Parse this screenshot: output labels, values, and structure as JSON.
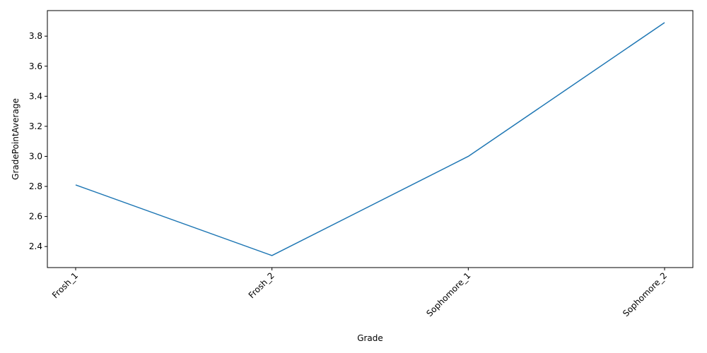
{
  "chart_data": {
    "type": "line",
    "title": "",
    "xlabel": "Grade",
    "ylabel": "GradePointAverage",
    "categories": [
      "Frosh_1",
      "Frosh_2",
      "Sophomore_1",
      "Sophomore_2"
    ],
    "series": [
      {
        "values": [
          2.81,
          2.34,
          3.0,
          3.89
        ]
      }
    ],
    "yticks": [
      "2.4",
      "2.6",
      "2.8",
      "3.0",
      "3.2",
      "3.4",
      "3.6",
      "3.8"
    ],
    "ylim": [
      2.26,
      3.97
    ],
    "grid": false,
    "line_color": "#1f77b4",
    "xtick_rotation": "45 degrees"
  }
}
